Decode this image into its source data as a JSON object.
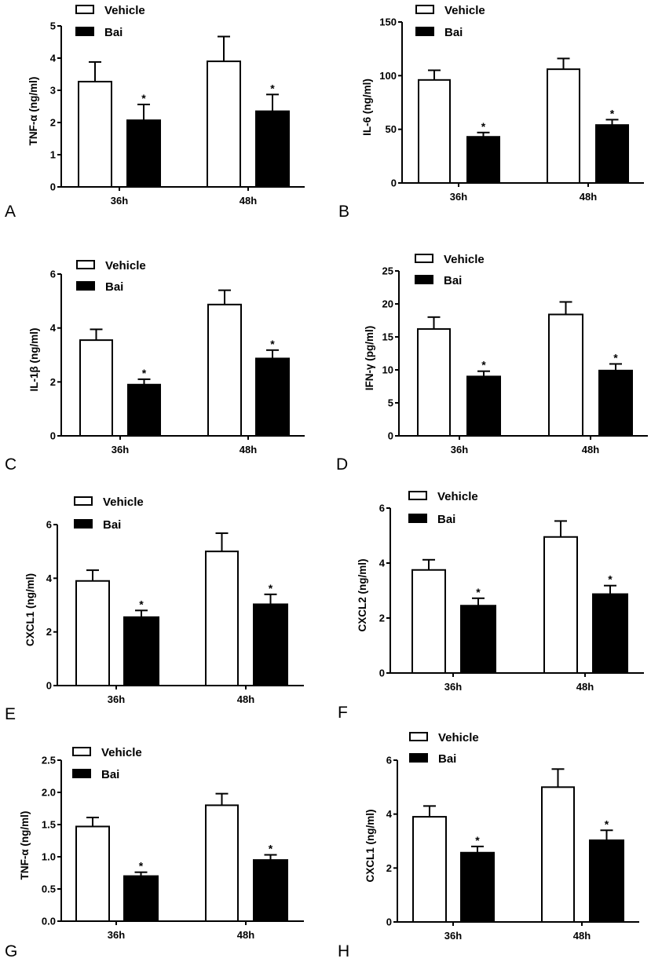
{
  "colors": {
    "vehicle_fill": "#ffffff",
    "bai_fill": "#000000",
    "stroke": "#000000"
  },
  "chart_data": [
    {
      "panel": "A",
      "type": "bar",
      "ylabel": "TNF-α (ng/ml)",
      "categories": [
        "36h",
        "48h"
      ],
      "ylim": [
        0,
        5
      ],
      "yticks": [
        "0",
        "1",
        "2",
        "3",
        "4",
        "5"
      ],
      "legend": [
        "Vehicle",
        "Bai"
      ],
      "legend_position": "top-left",
      "series": [
        {
          "name": "Vehicle",
          "values": [
            3.27,
            3.9
          ],
          "error_upper": [
            3.88,
            4.67
          ],
          "significance": [
            "",
            ""
          ]
        },
        {
          "name": "Bai",
          "values": [
            2.07,
            2.35
          ],
          "error_upper": [
            2.56,
            2.87
          ],
          "significance": [
            "*",
            "*"
          ]
        }
      ]
    },
    {
      "panel": "B",
      "type": "bar",
      "ylabel": "IL-6 (ng/ml)",
      "categories": [
        "36h",
        "48h"
      ],
      "ylim": [
        0,
        150
      ],
      "yticks": [
        "0",
        "50",
        "100",
        "150"
      ],
      "legend": [
        "Vehicle",
        "Bai"
      ],
      "legend_position": "top-left",
      "series": [
        {
          "name": "Vehicle",
          "values": [
            96,
            106
          ],
          "error_upper": [
            105,
            116
          ],
          "significance": [
            "",
            ""
          ]
        },
        {
          "name": "Bai",
          "values": [
            43,
            54
          ],
          "error_upper": [
            47,
            59
          ],
          "significance": [
            "*",
            "*"
          ]
        }
      ]
    },
    {
      "panel": "C",
      "type": "bar",
      "ylabel": "IL-1β (ng/ml)",
      "categories": [
        "36h",
        "48h"
      ],
      "ylim": [
        0,
        6
      ],
      "yticks": [
        "0",
        "2",
        "4",
        "6"
      ],
      "legend": [
        "Vehicle",
        "Bai"
      ],
      "legend_position": "top-left",
      "series": [
        {
          "name": "Vehicle",
          "values": [
            3.55,
            4.87
          ],
          "error_upper": [
            3.95,
            5.4
          ],
          "significance": [
            "",
            ""
          ]
        },
        {
          "name": "Bai",
          "values": [
            1.9,
            2.87
          ],
          "error_upper": [
            2.1,
            3.18
          ],
          "significance": [
            "*",
            "*"
          ]
        }
      ]
    },
    {
      "panel": "D",
      "type": "bar",
      "ylabel": "IFN-γ (pg/ml)",
      "categories": [
        "36h",
        "48h"
      ],
      "ylim": [
        0,
        25
      ],
      "yticks": [
        "0",
        "5",
        "10",
        "15",
        "20",
        "25"
      ],
      "legend": [
        "Vehicle",
        "Bai"
      ],
      "legend_position": "top-left",
      "series": [
        {
          "name": "Vehicle",
          "values": [
            16.2,
            18.4
          ],
          "error_upper": [
            18.0,
            20.3
          ],
          "significance": [
            "",
            ""
          ]
        },
        {
          "name": "Bai",
          "values": [
            9.0,
            9.9
          ],
          "error_upper": [
            9.8,
            10.9
          ],
          "significance": [
            "*",
            "*"
          ]
        }
      ]
    },
    {
      "panel": "E",
      "type": "bar",
      "ylabel": "CXCL1 (ng/ml)",
      "categories": [
        "36h",
        "48h"
      ],
      "ylim": [
        0,
        6
      ],
      "yticks": [
        "0",
        "2",
        "4",
        "6"
      ],
      "legend": [
        "Vehicle",
        "Bai"
      ],
      "legend_position": "top-left",
      "series": [
        {
          "name": "Vehicle",
          "values": [
            3.9,
            5.0
          ],
          "error_upper": [
            4.3,
            5.68
          ],
          "significance": [
            "",
            ""
          ]
        },
        {
          "name": "Bai",
          "values": [
            2.55,
            3.03
          ],
          "error_upper": [
            2.8,
            3.4
          ],
          "significance": [
            "*",
            "*"
          ]
        }
      ]
    },
    {
      "panel": "F",
      "type": "bar",
      "ylabel": "CXCL2 (ng/ml)",
      "categories": [
        "36h",
        "48h"
      ],
      "ylim": [
        0,
        6
      ],
      "yticks": [
        "0",
        "2",
        "4",
        "6"
      ],
      "legend": [
        "Vehicle",
        "Bai"
      ],
      "legend_position": "top-left",
      "series": [
        {
          "name": "Vehicle",
          "values": [
            3.75,
            4.95
          ],
          "error_upper": [
            4.12,
            5.53
          ],
          "significance": [
            "",
            ""
          ]
        },
        {
          "name": "Bai",
          "values": [
            2.45,
            2.87
          ],
          "error_upper": [
            2.72,
            3.18
          ],
          "significance": [
            "*",
            "*"
          ]
        }
      ]
    },
    {
      "panel": "G",
      "type": "bar",
      "ylabel": "TNF-α (ng/ml)",
      "categories": [
        "36h",
        "48h"
      ],
      "ylim": [
        0,
        2.5
      ],
      "yticks": [
        "0.0",
        "0.5",
        "1.0",
        "1.5",
        "2.0",
        "2.5"
      ],
      "legend": [
        "Vehicle",
        "Bai"
      ],
      "legend_position": "top-left",
      "series": [
        {
          "name": "Vehicle",
          "values": [
            1.47,
            1.8
          ],
          "error_upper": [
            1.61,
            1.98
          ],
          "significance": [
            "",
            ""
          ]
        },
        {
          "name": "Bai",
          "values": [
            0.7,
            0.95
          ],
          "error_upper": [
            0.76,
            1.03
          ],
          "significance": [
            "*",
            "*"
          ]
        }
      ]
    },
    {
      "panel": "H",
      "type": "bar",
      "ylabel": "CXCL1 (ng/ml)",
      "categories": [
        "36h",
        "48h"
      ],
      "ylim": [
        0,
        6
      ],
      "yticks": [
        "0",
        "2",
        "4",
        "6"
      ],
      "legend": [
        "Vehicle",
        "Bai"
      ],
      "legend_position": "top-left",
      "series": [
        {
          "name": "Vehicle",
          "values": [
            3.9,
            5.0
          ],
          "error_upper": [
            4.3,
            5.67
          ],
          "significance": [
            "",
            ""
          ]
        },
        {
          "name": "Bai",
          "values": [
            2.57,
            3.03
          ],
          "error_upper": [
            2.8,
            3.4
          ],
          "significance": [
            "*",
            "*"
          ]
        }
      ]
    }
  ]
}
